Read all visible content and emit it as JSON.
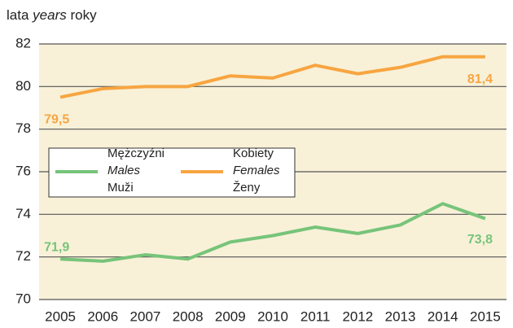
{
  "chart_data": {
    "type": "line",
    "ylabel": [
      "lata",
      "years",
      "roky"
    ],
    "categories": [
      "2005",
      "2006",
      "2007",
      "2008",
      "2009",
      "2010",
      "2011",
      "2012",
      "2013",
      "2014",
      "2015"
    ],
    "series": [
      {
        "name": [
          "Mężczyźni",
          "Males",
          "Muži"
        ],
        "color": "#77c47a",
        "values": [
          71.9,
          71.8,
          72.1,
          71.9,
          72.7,
          73.0,
          73.4,
          73.1,
          73.5,
          74.5,
          73.8
        ],
        "value_labels": [
          "71,9",
          null,
          null,
          null,
          null,
          null,
          null,
          null,
          null,
          null,
          "73,8"
        ]
      },
      {
        "name": [
          "Kobiety",
          "Females",
          "Ženy"
        ],
        "color": "#f7a541",
        "values": [
          79.5,
          79.9,
          80.0,
          80.0,
          80.5,
          80.4,
          81.0,
          80.6,
          80.9,
          81.4,
          81.4
        ],
        "value_labels": [
          "79,5",
          null,
          null,
          null,
          null,
          null,
          null,
          null,
          null,
          null,
          "81,4"
        ]
      }
    ],
    "ylim": [
      70,
      82
    ],
    "yticks": [
      70,
      72,
      74,
      76,
      78,
      80,
      82
    ],
    "grid": true
  }
}
